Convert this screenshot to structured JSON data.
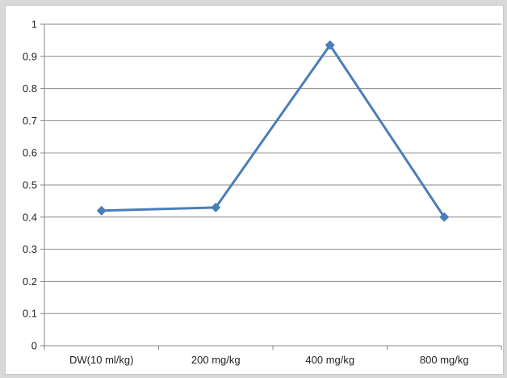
{
  "chart_data": {
    "type": "line",
    "categories": [
      "DW(10 ml/kg)",
      "200 mg/kg",
      "400 mg/kg",
      "800 mg/kg"
    ],
    "series": [
      {
        "values": [
          0.42,
          0.43,
          0.935,
          0.4
        ],
        "color": "#4a7ebb",
        "marker": "diamond"
      }
    ],
    "ylim": [
      0,
      1
    ],
    "yticks": [
      "0",
      "0.1",
      "0.2",
      "0.3",
      "0.4",
      "0.5",
      "0.6",
      "0.7",
      "0.8",
      "0.9",
      "1"
    ],
    "grid": true,
    "title": "",
    "xlabel": "",
    "ylabel": "",
    "legend": "none"
  }
}
